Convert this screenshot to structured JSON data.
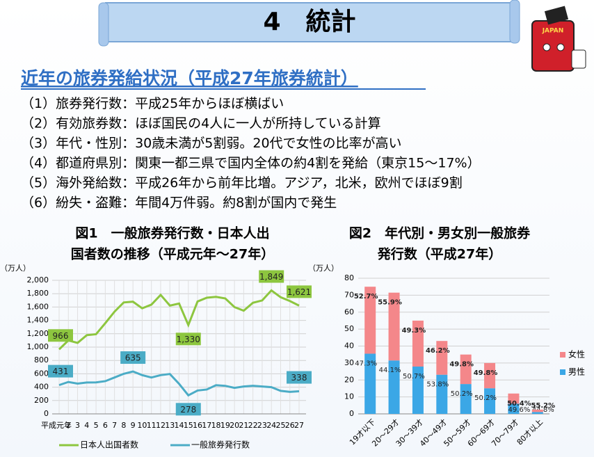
{
  "header": {
    "title": "4　統計",
    "mascot_label": "JAPAN"
  },
  "heading": "近年の旅券発給状況（平成27年旅券統計）",
  "items": [
    {
      "label": "（1）旅券発行数：",
      "text": "平成25年からほぼ横ばい"
    },
    {
      "label": "（2）有効旅券数：",
      "text": "ほぼ国民の4人に一人が所持している計算"
    },
    {
      "label": "（3）年代・性別：",
      "text": "30歳未満が5割弱。20代で女性の比率が高い"
    },
    {
      "label": "（4）都道府県別：",
      "text": "関東一都三県で国内全体の約4割を発給（東京15～17%）"
    },
    {
      "label": "（5）海外発給数：",
      "text": "平成26年から前年比増。アジア，北米，欧州でほぼ9割"
    },
    {
      "label": "（6）紛失・盗難：",
      "text": "年間4万件弱。約8割が国内で発生"
    }
  ],
  "chart_data": [
    {
      "type": "line",
      "title": [
        "図1　一般旅券発行数・日本人出",
        "国者数の推移（平成元年～27年）"
      ],
      "y_unit": "（万人）",
      "categories": [
        "平成元年",
        "2",
        "3",
        "4",
        "5",
        "6",
        "7",
        "8",
        "9",
        "10",
        "11",
        "12",
        "13",
        "14",
        "15",
        "16",
        "17",
        "18",
        "19",
        "20",
        "21",
        "22",
        "23",
        "24",
        "25",
        "26",
        "27"
      ],
      "ylim": [
        0,
        2000
      ],
      "yticks": [
        0,
        200,
        400,
        600,
        800,
        {
          "value": 1000,
          "label": "1,000"
        },
        {
          "value": 1200,
          "label": "1,200"
        },
        {
          "value": 1400,
          "label": "1,400"
        },
        {
          "value": 1600,
          "label": "1,600"
        },
        {
          "value": 1800,
          "label": "1,800"
        },
        {
          "value": 2000,
          "label": "2,000"
        }
      ],
      "grid": true,
      "series": [
        {
          "name": "日本人出国者数",
          "color": "#8dc63f",
          "values": [
            966,
            1100,
            1063,
            1179,
            1193,
            1358,
            1530,
            1669,
            1680,
            1581,
            1636,
            1782,
            1622,
            1652,
            1330,
            1683,
            1740,
            1753,
            1729,
            1599,
            1545,
            1664,
            1699,
            1849,
            1747,
            1690,
            1621
          ],
          "value_labels": [
            "966",
            null,
            null,
            null,
            null,
            null,
            null,
            null,
            null,
            null,
            null,
            null,
            null,
            null,
            "1,330",
            null,
            null,
            null,
            null,
            null,
            null,
            null,
            null,
            "1,849",
            null,
            null,
            "1,621"
          ]
        },
        {
          "name": "一般旅券発行数",
          "color": "#4bacc6",
          "values": [
            431,
            478,
            453,
            470,
            471,
            490,
            545,
            600,
            635,
            580,
            545,
            580,
            597,
            450,
            278,
            350,
            365,
            430,
            420,
            390,
            410,
            420,
            410,
            400,
            345,
            330,
            338
          ],
          "value_labels": [
            "431",
            null,
            null,
            null,
            null,
            null,
            null,
            null,
            "635",
            null,
            null,
            null,
            null,
            null,
            "278",
            null,
            null,
            null,
            null,
            null,
            null,
            null,
            null,
            null,
            null,
            null,
            "338"
          ]
        }
      ]
    },
    {
      "type": "stacked_bar",
      "title": [
        "図2　年代別・男女別一般旅券",
        "発行数（平成27年）"
      ],
      "y_unit": "（万人）",
      "categories": [
        "19才以下",
        "20～29才",
        "30～39才",
        "40～49才",
        "50～59才",
        "60～69才",
        "70～79才",
        "80才以上"
      ],
      "ylim": [
        0,
        80
      ],
      "yticks": [
        0,
        10,
        20,
        30,
        40,
        50,
        60,
        70,
        80
      ],
      "grid": true,
      "series": [
        {
          "name": "男性",
          "color": "#3ba7e6",
          "values": [
            35.5,
            31.5,
            27.9,
            23.1,
            17.6,
            15.1,
            6.0,
            1.1
          ],
          "percent_labels": [
            "47.3%",
            "44.1%",
            "50.7%",
            "53.8%",
            "50.2%",
            "50.2%",
            "49.6%",
            "44.8%"
          ]
        },
        {
          "name": "女性",
          "color": "#f4878a",
          "values": [
            39.5,
            40.0,
            27.1,
            19.9,
            17.4,
            14.9,
            6.0,
            1.4
          ],
          "percent_labels": [
            "52.7%",
            "55.9%",
            "49.3%",
            "46.2%",
            "49.8%",
            "49.8%",
            "50.4%",
            "55.2%"
          ]
        }
      ]
    }
  ]
}
